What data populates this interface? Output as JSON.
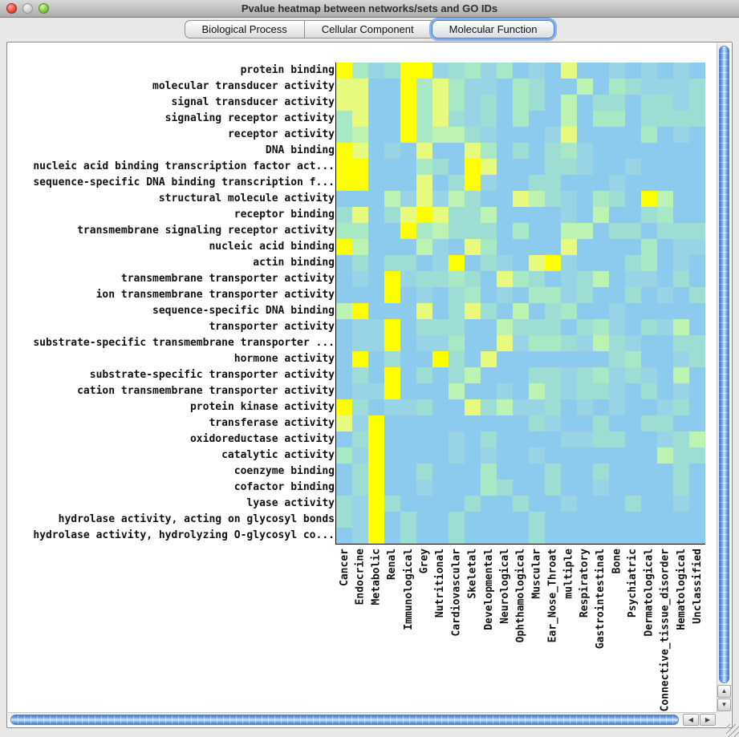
{
  "window": {
    "title": "Pvalue heatmap between networks/sets and GO IDs"
  },
  "traffic_lights": {
    "close": "close-button",
    "minimize": "minimize-button",
    "zoom": "zoom-button"
  },
  "tabs": [
    {
      "label": "Biological Process",
      "selected": false
    },
    {
      "label": "Cellular Component",
      "selected": false
    },
    {
      "label": "Molecular Function",
      "selected": true
    }
  ],
  "colors": {
    "selected_tab_ring": "#84b1e9",
    "scrollbar_blue": "#4a90e0",
    "axis_line": "#000000"
  },
  "icons": {
    "up_arrow": "▲",
    "down_arrow": "▼",
    "left_arrow": "◀",
    "right_arrow": "▶"
  },
  "heatmap": {
    "row_labels": [
      "protein binding",
      "molecular transducer activity",
      "signal transducer activity",
      "signaling receptor activity",
      "receptor activity",
      "DNA binding",
      "nucleic acid binding transcription factor act...",
      "sequence-specific DNA binding transcription f...",
      "structural molecule activity",
      "receptor binding",
      "transmembrane signaling receptor activity",
      "nucleic acid binding",
      "actin binding",
      "transmembrane transporter activity",
      "ion transmembrane transporter activity",
      "sequence-specific DNA binding",
      "transporter activity",
      "substrate-specific transmembrane transporter ...",
      "hormone activity",
      "substrate-specific transporter activity",
      "cation transmembrane transporter activity",
      "protein kinase activity",
      "transferase activity",
      "oxidoreductase activity",
      "catalytic activity",
      "coenzyme binding",
      "cofactor binding",
      "lyase activity",
      "hydrolase activity, acting on glycosyl bonds",
      "hydrolase activity, hydrolyzing O-glycosyl co..."
    ],
    "col_labels": [
      "Cancer",
      "Endocrine",
      "Metabolic",
      "Renal",
      "Immunological",
      "Grey",
      "Nutritional",
      "Cardiovascular",
      "Skeletal",
      "Developmental",
      "Neurological",
      "Ophthamological",
      "Muscular",
      "Ear_Nose_Throat",
      "multiple",
      "Respiratory",
      "Gastrointestinal",
      "Bone",
      "Psychiatric",
      "Dermatological",
      "Connective_tissue_disorder",
      "Hematological",
      "Unclassified"
    ],
    "palette": [
      "#8ccbee",
      "#98d3e6",
      "#9eddd3",
      "#a9e8c4",
      "#bcf2b2",
      "#cff79b",
      "#e7fa7e",
      "#ffff00"
    ],
    "cells": [
      [
        7,
        3,
        1,
        2,
        7,
        7,
        1,
        2,
        3,
        1,
        3,
        0,
        1,
        0,
        6,
        0,
        0,
        1,
        0,
        1,
        0,
        1,
        0
      ],
      [
        6,
        6,
        0,
        0,
        7,
        3,
        6,
        3,
        1,
        1,
        0,
        3,
        2,
        0,
        0,
        4,
        0,
        3,
        2,
        1,
        1,
        1,
        2
      ],
      [
        6,
        6,
        0,
        0,
        7,
        3,
        6,
        3,
        1,
        2,
        0,
        3,
        2,
        0,
        4,
        0,
        2,
        2,
        0,
        2,
        2,
        1,
        2
      ],
      [
        3,
        6,
        0,
        0,
        7,
        3,
        6,
        2,
        1,
        2,
        0,
        3,
        0,
        0,
        4,
        0,
        3,
        3,
        0,
        2,
        2,
        2,
        2
      ],
      [
        3,
        4,
        0,
        0,
        7,
        3,
        4,
        4,
        2,
        1,
        0,
        0,
        0,
        1,
        6,
        0,
        0,
        0,
        0,
        3,
        0,
        1,
        0
      ],
      [
        7,
        6,
        0,
        1,
        0,
        6,
        0,
        0,
        6,
        3,
        0,
        2,
        0,
        2,
        3,
        1,
        0,
        0,
        0,
        0,
        0,
        0,
        0
      ],
      [
        7,
        7,
        0,
        0,
        0,
        3,
        2,
        0,
        7,
        6,
        0,
        0,
        0,
        2,
        2,
        1,
        0,
        0,
        1,
        0,
        0,
        0,
        0
      ],
      [
        7,
        7,
        0,
        0,
        0,
        6,
        0,
        2,
        7,
        1,
        0,
        0,
        2,
        2,
        0,
        0,
        0,
        1,
        0,
        0,
        0,
        0,
        0
      ],
      [
        0,
        0,
        0,
        4,
        1,
        6,
        1,
        4,
        2,
        0,
        0,
        6,
        4,
        2,
        1,
        0,
        3,
        2,
        0,
        7,
        4,
        0,
        0
      ],
      [
        2,
        6,
        0,
        2,
        6,
        7,
        6,
        2,
        2,
        4,
        0,
        0,
        0,
        0,
        1,
        0,
        4,
        0,
        0,
        2,
        3,
        0,
        0
      ],
      [
        3,
        3,
        0,
        0,
        7,
        3,
        4,
        2,
        2,
        2,
        0,
        3,
        0,
        0,
        4,
        4,
        0,
        2,
        2,
        0,
        2,
        2,
        2
      ],
      [
        7,
        4,
        0,
        0,
        0,
        4,
        1,
        0,
        6,
        3,
        0,
        0,
        0,
        0,
        6,
        0,
        0,
        0,
        0,
        3,
        0,
        1,
        1
      ],
      [
        0,
        2,
        0,
        2,
        2,
        0,
        1,
        7,
        0,
        2,
        1,
        0,
        6,
        7,
        1,
        0,
        0,
        0,
        2,
        3,
        0,
        1,
        0
      ],
      [
        0,
        1,
        0,
        7,
        1,
        2,
        2,
        3,
        2,
        0,
        6,
        3,
        2,
        0,
        1,
        2,
        4,
        0,
        1,
        1,
        0,
        2,
        0
      ],
      [
        0,
        0,
        0,
        7,
        0,
        1,
        0,
        2,
        3,
        0,
        1,
        0,
        3,
        3,
        1,
        2,
        0,
        0,
        2,
        0,
        1,
        0,
        2
      ],
      [
        4,
        7,
        0,
        0,
        0,
        6,
        0,
        2,
        6,
        2,
        0,
        4,
        0,
        2,
        3,
        0,
        0,
        1,
        0,
        0,
        0,
        0,
        0
      ],
      [
        0,
        1,
        1,
        7,
        0,
        2,
        2,
        2,
        0,
        0,
        4,
        2,
        2,
        2,
        0,
        2,
        3,
        1,
        0,
        2,
        1,
        4,
        0
      ],
      [
        0,
        1,
        1,
        7,
        0,
        1,
        1,
        3,
        0,
        0,
        6,
        1,
        3,
        3,
        2,
        1,
        4,
        2,
        1,
        0,
        0,
        2,
        2
      ],
      [
        0,
        7,
        0,
        2,
        0,
        0,
        7,
        2,
        0,
        6,
        0,
        0,
        0,
        0,
        0,
        0,
        0,
        2,
        3,
        0,
        0,
        1,
        2
      ],
      [
        0,
        2,
        0,
        7,
        0,
        2,
        0,
        2,
        4,
        0,
        0,
        0,
        2,
        2,
        1,
        2,
        3,
        1,
        2,
        1,
        0,
        4,
        0
      ],
      [
        0,
        1,
        1,
        7,
        0,
        0,
        0,
        4,
        0,
        0,
        1,
        0,
        4,
        2,
        1,
        2,
        2,
        1,
        0,
        2,
        0,
        1,
        0
      ],
      [
        7,
        2,
        0,
        1,
        1,
        2,
        0,
        0,
        6,
        2,
        4,
        1,
        1,
        2,
        0,
        1,
        0,
        1,
        0,
        0,
        1,
        2,
        0
      ],
      [
        6,
        1,
        7,
        0,
        0,
        0,
        0,
        0,
        0,
        0,
        0,
        0,
        2,
        1,
        0,
        0,
        2,
        0,
        0,
        2,
        2,
        0,
        0
      ],
      [
        0,
        2,
        7,
        0,
        0,
        0,
        0,
        1,
        0,
        2,
        0,
        0,
        0,
        0,
        1,
        1,
        2,
        2,
        0,
        0,
        1,
        2,
        4
      ],
      [
        3,
        1,
        7,
        0,
        0,
        0,
        0,
        1,
        0,
        1,
        0,
        0,
        1,
        0,
        0,
        0,
        0,
        0,
        0,
        0,
        4,
        2,
        2
      ],
      [
        0,
        2,
        7,
        0,
        0,
        2,
        0,
        0,
        0,
        3,
        0,
        0,
        0,
        2,
        0,
        0,
        2,
        0,
        0,
        0,
        0,
        2,
        0
      ],
      [
        0,
        2,
        7,
        0,
        0,
        1,
        0,
        0,
        0,
        3,
        2,
        0,
        0,
        2,
        0,
        0,
        1,
        0,
        0,
        0,
        0,
        2,
        0
      ],
      [
        2,
        1,
        7,
        2,
        0,
        0,
        0,
        0,
        2,
        0,
        0,
        2,
        0,
        0,
        1,
        0,
        0,
        0,
        2,
        0,
        0,
        1,
        0
      ],
      [
        2,
        1,
        7,
        0,
        2,
        0,
        0,
        2,
        0,
        0,
        0,
        0,
        2,
        0,
        0,
        0,
        0,
        0,
        0,
        0,
        0,
        0,
        0
      ],
      [
        0,
        1,
        7,
        0,
        2,
        0,
        0,
        2,
        0,
        0,
        0,
        0,
        2,
        0,
        0,
        0,
        0,
        0,
        0,
        0,
        0,
        0,
        0
      ]
    ]
  }
}
